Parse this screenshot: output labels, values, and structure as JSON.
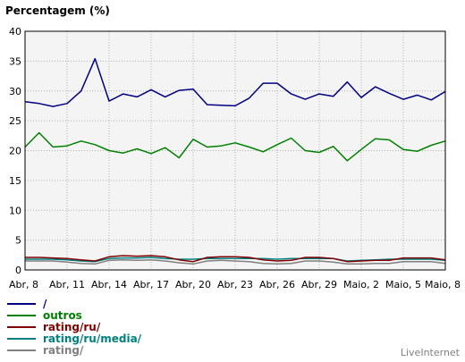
{
  "chart_data": {
    "type": "line",
    "ylabel": "Percentagem (%)",
    "xlabel": "",
    "ylim": [
      0,
      40
    ],
    "yticks": [
      0,
      5,
      10,
      15,
      20,
      25,
      30,
      35,
      40
    ],
    "x": [
      "Abr, 8",
      "Abr, 9",
      "Abr, 10",
      "Abr, 11",
      "Abr, 12",
      "Abr, 13",
      "Abr, 14",
      "Abr, 15",
      "Abr, 16",
      "Abr, 17",
      "Abr, 18",
      "Abr, 19",
      "Abr, 20",
      "Abr, 21",
      "Abr, 22",
      "Abr, 23",
      "Abr, 24",
      "Abr, 25",
      "Abr, 26",
      "Abr, 27",
      "Abr, 28",
      "Abr, 29",
      "Abr, 30",
      "Maio, 1",
      "Maio, 2",
      "Maio, 3",
      "Maio, 4",
      "Maio, 5",
      "Maio, 6",
      "Maio, 7",
      "Maio, 8"
    ],
    "xtick_labels": [
      "Abr, 8",
      "Abr, 11",
      "Abr, 14",
      "Abr, 17",
      "Abr, 20",
      "Abr, 23",
      "Abr, 26",
      "Abr, 29",
      "Maio, 2",
      "Maio, 5",
      "Maio, 8"
    ],
    "grid": true,
    "background": "#f4f4f4",
    "legend_position": "bottom-left",
    "series": [
      {
        "name": "/",
        "color": "#000080",
        "values": [
          28.2,
          27.9,
          27.4,
          27.9,
          30.0,
          35.4,
          28.3,
          29.5,
          29.0,
          30.2,
          29.0,
          30.1,
          30.3,
          27.7,
          27.6,
          27.5,
          28.8,
          31.3,
          31.3,
          29.5,
          28.6,
          29.5,
          29.1,
          31.5,
          28.9,
          30.7,
          29.6,
          28.6,
          29.3,
          28.5,
          29.9
        ]
      },
      {
        "name": "outros",
        "color": "#008000",
        "values": [
          20.6,
          23.0,
          20.6,
          20.8,
          21.6,
          21.0,
          20.0,
          19.6,
          20.3,
          19.5,
          20.5,
          18.8,
          21.9,
          20.6,
          20.8,
          21.3,
          20.6,
          19.8,
          21.0,
          22.1,
          20.0,
          19.7,
          20.7,
          18.3,
          20.2,
          22.0,
          21.8,
          20.2,
          19.9,
          20.9,
          21.6
        ]
      },
      {
        "name": "rating/ru/",
        "color": "#800000",
        "values": [
          2.1,
          2.1,
          2.0,
          1.9,
          1.7,
          1.5,
          2.2,
          2.4,
          2.3,
          2.4,
          2.2,
          1.7,
          1.4,
          2.1,
          2.2,
          2.2,
          2.1,
          1.7,
          1.5,
          1.6,
          2.1,
          2.1,
          1.9,
          1.4,
          1.5,
          1.6,
          1.6,
          2.0,
          2.0,
          2.0,
          1.7
        ]
      },
      {
        "name": "rating/ru/media/",
        "color": "#008080",
        "values": [
          1.8,
          1.8,
          1.8,
          1.7,
          1.5,
          1.4,
          1.9,
          2.0,
          2.0,
          2.1,
          1.9,
          1.8,
          1.8,
          1.9,
          1.9,
          1.9,
          1.9,
          1.9,
          1.8,
          1.9,
          1.9,
          1.9,
          1.9,
          1.5,
          1.6,
          1.7,
          1.8,
          1.8,
          1.8,
          1.8,
          1.6
        ]
      },
      {
        "name": "rating/",
        "color": "#808080",
        "values": [
          1.5,
          1.5,
          1.5,
          1.3,
          1.1,
          1.0,
          1.6,
          1.7,
          1.6,
          1.7,
          1.5,
          1.2,
          1.0,
          1.5,
          1.6,
          1.5,
          1.4,
          1.1,
          1.0,
          1.1,
          1.5,
          1.5,
          1.3,
          1.0,
          1.0,
          1.1,
          1.1,
          1.4,
          1.4,
          1.4,
          1.1
        ]
      }
    ]
  },
  "footer": {
    "credit": "LiveInternet"
  }
}
